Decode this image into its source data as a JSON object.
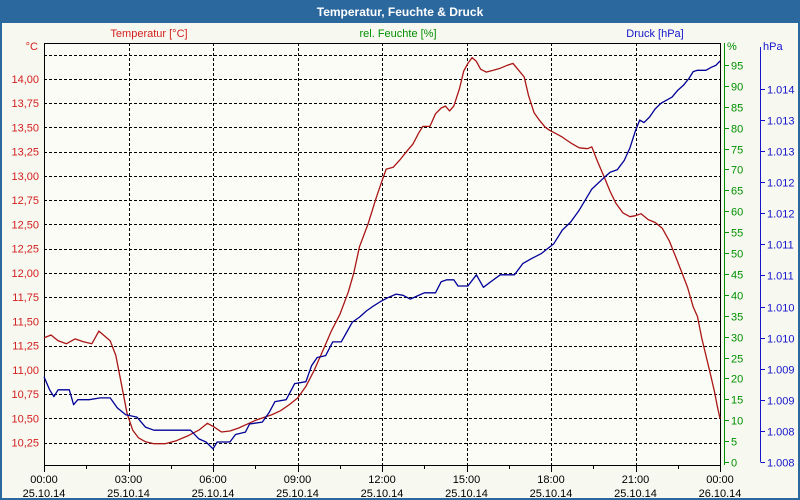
{
  "window": {
    "title": "Temperatur, Feuchte & Druck"
  },
  "headers": {
    "temperature": "Temperatur [°C]",
    "humidity": "rel. Feuchte [%]",
    "pressure": "Druck [hPa]"
  },
  "units": {
    "temperature": "°C",
    "humidity": "%",
    "pressure": "hPa"
  },
  "colors": {
    "titlebar": "#2b689e",
    "window_bg": "#f7f8ef",
    "plot_bg": "#fcfcf6",
    "grid": "#000000",
    "temp_labels": "#d42020",
    "temp_curve": "#aa1515",
    "hum_axis": "#009000",
    "pres_labels": "#1515cc",
    "pres_curve": "#000099"
  },
  "chart_data": {
    "type": "line",
    "title": "Temperatur, Feuchte & Druck",
    "grid": "dashed",
    "legend": "none",
    "x": {
      "range_hours": [
        0,
        24
      ],
      "major_step_h": 3,
      "minor_step_h": 1.5,
      "ticks": [
        {
          "h": 0,
          "time": "00:00",
          "date": "25.10.14"
        },
        {
          "h": 3,
          "time": "03:00",
          "date": "25.10.14"
        },
        {
          "h": 6,
          "time": "06:00",
          "date": "25.10.14"
        },
        {
          "h": 9,
          "time": "09:00",
          "date": "25.10.14"
        },
        {
          "h": 12,
          "time": "12:00",
          "date": "25.10.14"
        },
        {
          "h": 15,
          "time": "15:00",
          "date": "25.10.14"
        },
        {
          "h": 18,
          "time": "18:00",
          "date": "25.10.14"
        },
        {
          "h": 21,
          "time": "21:00",
          "date": "25.10.14"
        },
        {
          "h": 24,
          "time": "00:00",
          "date": "26.10.14"
        }
      ]
    },
    "axes": {
      "temperature": {
        "side": "left",
        "unit": "°C",
        "ymin": 10.02,
        "ymax": 14.37,
        "ticks": [
          {
            "v": 14.25,
            "label": ""
          },
          {
            "v": 14.0,
            "label": "14,00"
          },
          {
            "v": 13.75,
            "label": "13,75"
          },
          {
            "v": 13.5,
            "label": "13,50"
          },
          {
            "v": 13.25,
            "label": "13,25"
          },
          {
            "v": 13.0,
            "label": "13,00"
          },
          {
            "v": 12.75,
            "label": "12,75"
          },
          {
            "v": 12.5,
            "label": "12,50"
          },
          {
            "v": 12.25,
            "label": "12,25"
          },
          {
            "v": 12.0,
            "label": "12,00"
          },
          {
            "v": 11.75,
            "label": "11,75"
          },
          {
            "v": 11.5,
            "label": "11,50"
          },
          {
            "v": 11.25,
            "label": "11,25"
          },
          {
            "v": 11.0,
            "label": "11,00"
          },
          {
            "v": 10.75,
            "label": "10,75"
          },
          {
            "v": 10.5,
            "label": "10,50"
          },
          {
            "v": 10.25,
            "label": "10,25"
          }
        ]
      },
      "humidity": {
        "side": "right",
        "unit": "%",
        "ymin": -0.7,
        "ymax": 100.24,
        "ticks": [
          {
            "v": 95,
            "label": "95"
          },
          {
            "v": 90,
            "label": "90"
          },
          {
            "v": 85,
            "label": "85"
          },
          {
            "v": 80,
            "label": "80"
          },
          {
            "v": 75,
            "label": "75"
          },
          {
            "v": 70,
            "label": "70"
          },
          {
            "v": 65,
            "label": "65"
          },
          {
            "v": 60,
            "label": "60"
          },
          {
            "v": 55,
            "label": "55"
          },
          {
            "v": 50,
            "label": "50"
          },
          {
            "v": 45,
            "label": "45"
          },
          {
            "v": 40,
            "label": "40"
          },
          {
            "v": 35,
            "label": "35"
          },
          {
            "v": 30,
            "label": "30"
          },
          {
            "v": 25,
            "label": "25"
          },
          {
            "v": 20,
            "label": "20"
          },
          {
            "v": 15,
            "label": "15"
          },
          {
            "v": 10,
            "label": "10"
          },
          {
            "v": 5,
            "label": "5"
          },
          {
            "v": 0,
            "label": "0"
          }
        ]
      },
      "pressure": {
        "side": "far-right",
        "unit": "hPa",
        "ymin": 1007.95,
        "ymax": 1014.74,
        "ticks": [
          {
            "v": 1014.0,
            "label": "1.014"
          },
          {
            "v": 1013.5,
            "label": "1.013"
          },
          {
            "v": 1013.0,
            "label": "1.013"
          },
          {
            "v": 1012.5,
            "label": "1.012"
          },
          {
            "v": 1012.0,
            "label": "1.012"
          },
          {
            "v": 1011.5,
            "label": "1.011"
          },
          {
            "v": 1011.0,
            "label": "1.011"
          },
          {
            "v": 1010.5,
            "label": "1.010"
          },
          {
            "v": 1010.0,
            "label": "1.010"
          },
          {
            "v": 1009.5,
            "label": "1.009"
          },
          {
            "v": 1009.0,
            "label": "1.009"
          },
          {
            "v": 1008.5,
            "label": "1.008"
          },
          {
            "v": 1008.0,
            "label": "1.008"
          }
        ]
      }
    },
    "series": [
      {
        "name": "Temperatur",
        "axis": "temperature",
        "color": "#aa1515",
        "points": [
          [
            0,
            11.33
          ],
          [
            0.25,
            11.36
          ],
          [
            0.5,
            11.3
          ],
          [
            0.8,
            11.27
          ],
          [
            1.1,
            11.32
          ],
          [
            1.4,
            11.29
          ],
          [
            1.7,
            11.27
          ],
          [
            1.95,
            11.4
          ],
          [
            2.15,
            11.35
          ],
          [
            2.35,
            11.3
          ],
          [
            2.55,
            11.15
          ],
          [
            2.75,
            10.85
          ],
          [
            2.95,
            10.55
          ],
          [
            3.15,
            10.38
          ],
          [
            3.35,
            10.3
          ],
          [
            3.6,
            10.26
          ],
          [
            3.9,
            10.24
          ],
          [
            4.3,
            10.24
          ],
          [
            4.7,
            10.27
          ],
          [
            5.1,
            10.32
          ],
          [
            5.5,
            10.38
          ],
          [
            5.8,
            10.45
          ],
          [
            6.05,
            10.41
          ],
          [
            6.3,
            10.36
          ],
          [
            6.6,
            10.37
          ],
          [
            6.9,
            10.4
          ],
          [
            7.2,
            10.44
          ],
          [
            7.5,
            10.48
          ],
          [
            7.8,
            10.51
          ],
          [
            8.1,
            10.54
          ],
          [
            8.4,
            10.58
          ],
          [
            8.7,
            10.64
          ],
          [
            9.0,
            10.71
          ],
          [
            9.3,
            10.83
          ],
          [
            9.6,
            11.0
          ],
          [
            9.9,
            11.2
          ],
          [
            10.2,
            11.4
          ],
          [
            10.5,
            11.57
          ],
          [
            10.8,
            11.8
          ],
          [
            11.0,
            12.0
          ],
          [
            11.2,
            12.27
          ],
          [
            11.5,
            12.5
          ],
          [
            11.8,
            12.78
          ],
          [
            12.0,
            12.95
          ],
          [
            12.15,
            13.07
          ],
          [
            12.4,
            13.09
          ],
          [
            12.65,
            13.17
          ],
          [
            12.9,
            13.26
          ],
          [
            13.1,
            13.33
          ],
          [
            13.3,
            13.44
          ],
          [
            13.45,
            13.51
          ],
          [
            13.7,
            13.51
          ],
          [
            13.9,
            13.64
          ],
          [
            14.1,
            13.7
          ],
          [
            14.25,
            13.72
          ],
          [
            14.4,
            13.67
          ],
          [
            14.55,
            13.72
          ],
          [
            14.75,
            13.9
          ],
          [
            14.9,
            14.08
          ],
          [
            15.05,
            14.16
          ],
          [
            15.2,
            14.22
          ],
          [
            15.35,
            14.18
          ],
          [
            15.5,
            14.1
          ],
          [
            15.7,
            14.07
          ],
          [
            15.95,
            14.09
          ],
          [
            16.2,
            14.11
          ],
          [
            16.45,
            14.14
          ],
          [
            16.65,
            14.16
          ],
          [
            16.85,
            14.09
          ],
          [
            17.05,
            14.02
          ],
          [
            17.2,
            13.83
          ],
          [
            17.4,
            13.65
          ],
          [
            17.6,
            13.57
          ],
          [
            17.8,
            13.5
          ],
          [
            17.95,
            13.47
          ],
          [
            18.15,
            13.44
          ],
          [
            18.4,
            13.4
          ],
          [
            18.7,
            13.34
          ],
          [
            19.0,
            13.29
          ],
          [
            19.3,
            13.28
          ],
          [
            19.45,
            13.3
          ],
          [
            19.65,
            13.15
          ],
          [
            19.9,
            12.98
          ],
          [
            20.1,
            12.84
          ],
          [
            20.3,
            12.72
          ],
          [
            20.55,
            12.62
          ],
          [
            20.8,
            12.58
          ],
          [
            21.0,
            12.59
          ],
          [
            21.2,
            12.61
          ],
          [
            21.45,
            12.55
          ],
          [
            21.7,
            12.52
          ],
          [
            21.95,
            12.46
          ],
          [
            22.2,
            12.33
          ],
          [
            22.45,
            12.15
          ],
          [
            22.65,
            12.0
          ],
          [
            22.85,
            11.85
          ],
          [
            23.05,
            11.65
          ],
          [
            23.2,
            11.55
          ],
          [
            23.35,
            11.33
          ],
          [
            23.5,
            11.15
          ],
          [
            23.65,
            10.97
          ],
          [
            23.8,
            10.78
          ],
          [
            23.9,
            10.63
          ],
          [
            24.0,
            10.5
          ]
        ]
      },
      {
        "name": "Druck",
        "axis": "pressure",
        "color": "#000099",
        "points": [
          [
            0,
            1009.37
          ],
          [
            0.2,
            1009.16
          ],
          [
            0.35,
            1009.05
          ],
          [
            0.5,
            1009.16
          ],
          [
            0.9,
            1009.16
          ],
          [
            1.05,
            1008.92
          ],
          [
            1.2,
            1009.0
          ],
          [
            1.6,
            1009.0
          ],
          [
            2.0,
            1009.03
          ],
          [
            2.35,
            1009.03
          ],
          [
            2.6,
            1008.87
          ],
          [
            2.9,
            1008.76
          ],
          [
            3.3,
            1008.72
          ],
          [
            3.6,
            1008.56
          ],
          [
            3.9,
            1008.51
          ],
          [
            5.2,
            1008.51
          ],
          [
            5.5,
            1008.37
          ],
          [
            5.75,
            1008.32
          ],
          [
            6.0,
            1008.21
          ],
          [
            6.15,
            1008.32
          ],
          [
            6.6,
            1008.32
          ],
          [
            6.8,
            1008.44
          ],
          [
            7.15,
            1008.48
          ],
          [
            7.3,
            1008.61
          ],
          [
            7.75,
            1008.64
          ],
          [
            8.0,
            1008.8
          ],
          [
            8.2,
            1008.97
          ],
          [
            8.6,
            1009.0
          ],
          [
            8.9,
            1009.26
          ],
          [
            9.3,
            1009.29
          ],
          [
            9.5,
            1009.55
          ],
          [
            9.7,
            1009.68
          ],
          [
            10.0,
            1009.71
          ],
          [
            10.25,
            1009.93
          ],
          [
            10.55,
            1009.93
          ],
          [
            10.75,
            1010.09
          ],
          [
            10.95,
            1010.25
          ],
          [
            11.2,
            1010.33
          ],
          [
            11.45,
            1010.43
          ],
          [
            11.7,
            1010.51
          ],
          [
            11.95,
            1010.58
          ],
          [
            12.2,
            1010.64
          ],
          [
            12.5,
            1010.7
          ],
          [
            12.75,
            1010.68
          ],
          [
            13.0,
            1010.62
          ],
          [
            13.25,
            1010.67
          ],
          [
            13.5,
            1010.72
          ],
          [
            13.9,
            1010.72
          ],
          [
            14.1,
            1010.9
          ],
          [
            14.3,
            1010.93
          ],
          [
            14.55,
            1010.93
          ],
          [
            14.7,
            1010.83
          ],
          [
            15.05,
            1010.83
          ],
          [
            15.35,
            1011.01
          ],
          [
            15.6,
            1010.81
          ],
          [
            15.9,
            1010.91
          ],
          [
            16.2,
            1011.01
          ],
          [
            16.7,
            1011.01
          ],
          [
            17.0,
            1011.19
          ],
          [
            17.3,
            1011.27
          ],
          [
            17.65,
            1011.35
          ],
          [
            17.9,
            1011.44
          ],
          [
            18.1,
            1011.51
          ],
          [
            18.4,
            1011.73
          ],
          [
            18.7,
            1011.86
          ],
          [
            19.0,
            1012.05
          ],
          [
            19.45,
            1012.39
          ],
          [
            19.9,
            1012.58
          ],
          [
            20.1,
            1012.66
          ],
          [
            20.35,
            1012.7
          ],
          [
            20.6,
            1012.85
          ],
          [
            20.8,
            1013.05
          ],
          [
            21.0,
            1013.33
          ],
          [
            21.15,
            1013.5
          ],
          [
            21.3,
            1013.46
          ],
          [
            21.5,
            1013.55
          ],
          [
            21.7,
            1013.68
          ],
          [
            21.9,
            1013.77
          ],
          [
            22.1,
            1013.82
          ],
          [
            22.3,
            1013.87
          ],
          [
            22.5,
            1013.98
          ],
          [
            22.7,
            1014.06
          ],
          [
            22.9,
            1014.17
          ],
          [
            23.05,
            1014.28
          ],
          [
            23.2,
            1014.3
          ],
          [
            23.5,
            1014.3
          ],
          [
            23.7,
            1014.35
          ],
          [
            23.85,
            1014.38
          ],
          [
            24.0,
            1014.45
          ]
        ]
      }
    ]
  }
}
